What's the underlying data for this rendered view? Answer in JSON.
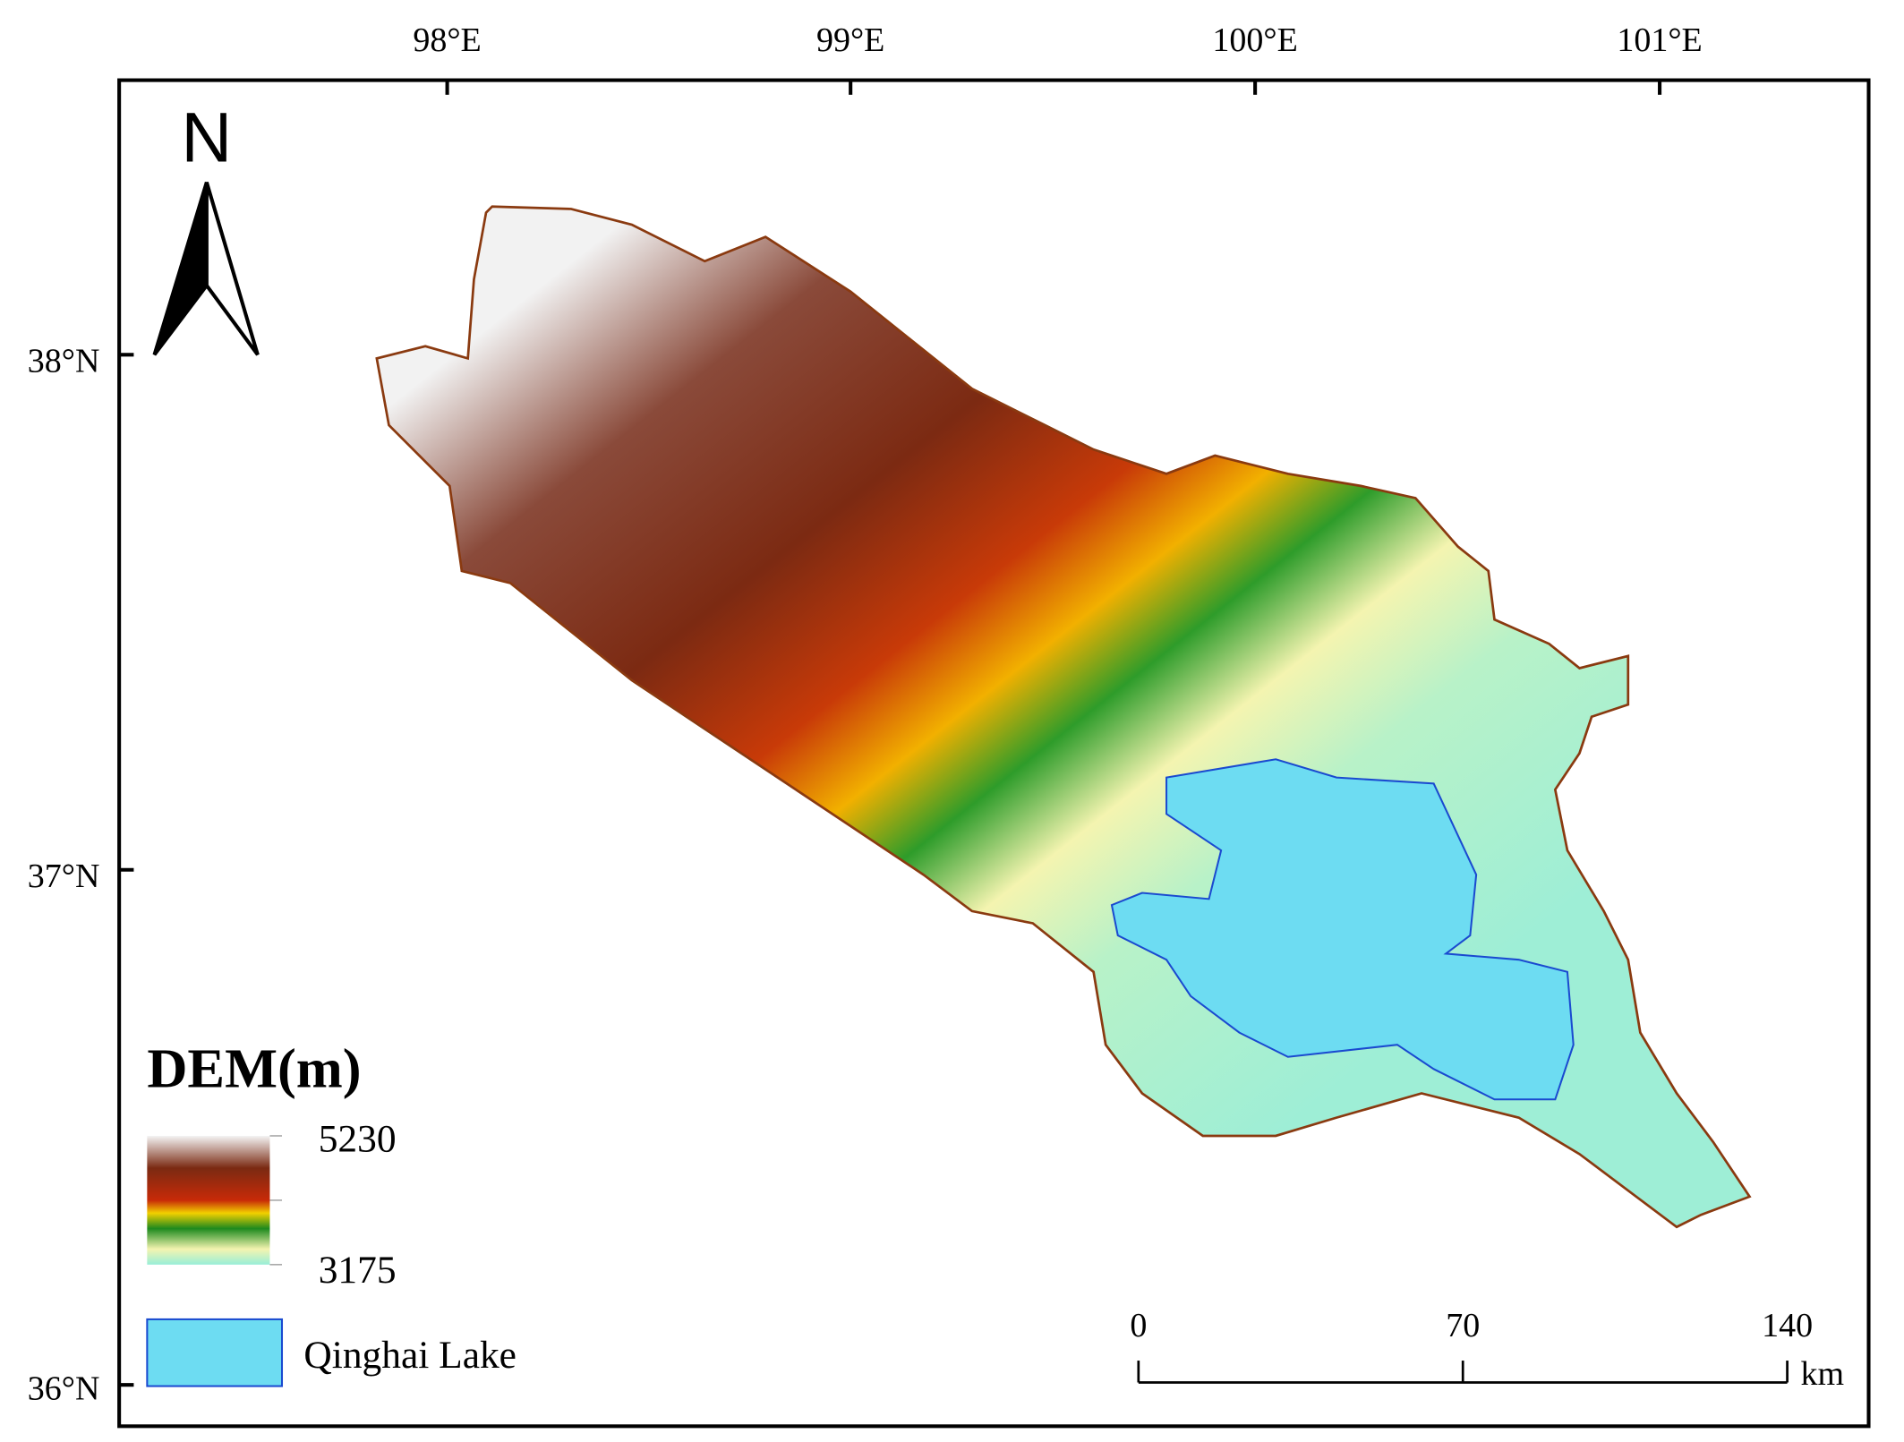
{
  "map": {
    "lon_labels": [
      "98°E",
      "99°E",
      "100°E",
      "101°E"
    ],
    "lat_labels": [
      "38°N",
      "37°N",
      "36°N"
    ],
    "north_label": "N",
    "legend": {
      "title": "DEM(m)",
      "max": 5230,
      "min": 3175,
      "lake_label": "Qinghai Lake"
    },
    "scale_bar": {
      "ticks": [
        0,
        70,
        140
      ],
      "unit": "km"
    }
  }
}
